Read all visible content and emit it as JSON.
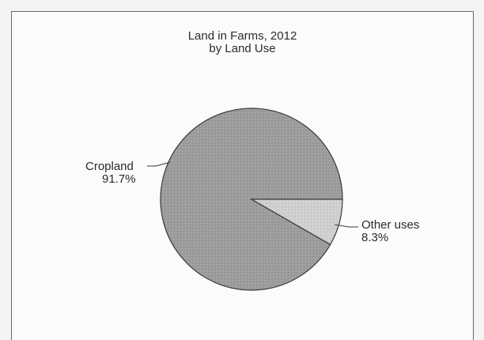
{
  "chart_data": {
    "type": "pie",
    "title": "Land in Farms, 2012",
    "subtitle": "by Land Use",
    "slices": [
      {
        "label": "Cropland",
        "value": 91.7,
        "display": "91.7%",
        "color": "#9a9a9a"
      },
      {
        "label": "Other uses",
        "value": 8.3,
        "display": "8.3%",
        "color": "#cdcdcd"
      }
    ],
    "legend": "none",
    "data_labels": "outside with leader lines"
  },
  "colors": {
    "frame": "#6a6a6a",
    "background": "#fbfbfb",
    "slice_outline": "#3a3a3a"
  }
}
